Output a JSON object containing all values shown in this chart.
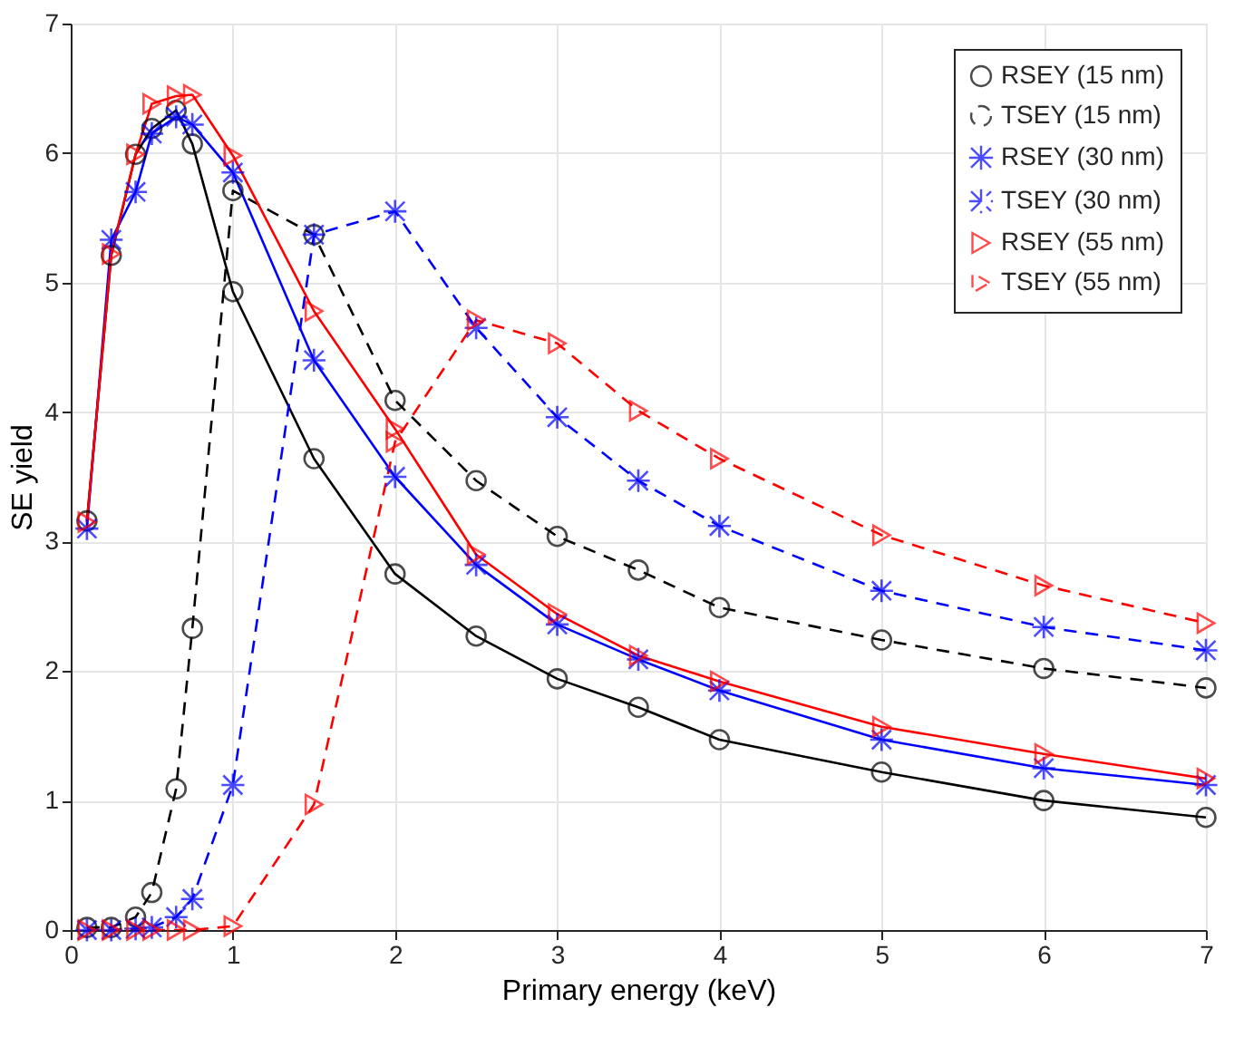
{
  "chart_data": {
    "type": "line",
    "xlabel": "Primary energy (keV)",
    "ylabel": "SE yield",
    "x": [
      0.1,
      0.25,
      0.4,
      0.5,
      0.65,
      0.75,
      1,
      1.5,
      2,
      2.5,
      3,
      3.5,
      4,
      5,
      6,
      7
    ],
    "series": [
      {
        "name": "RSEY (15 nm)",
        "color": "#000000",
        "marker": "circle",
        "line_style": "solid",
        "values": [
          3.16,
          5.21,
          5.99,
          6.19,
          6.33,
          6.07,
          4.93,
          3.64,
          2.75,
          2.27,
          1.94,
          1.72,
          1.47,
          1.22,
          1.0,
          0.87
        ]
      },
      {
        "name": "TSEY (15 nm)",
        "color": "#000000",
        "marker": "circle",
        "line_style": "dashed",
        "values": [
          0.02,
          0.02,
          0.1,
          0.29,
          1.09,
          2.33,
          5.71,
          5.37,
          4.09,
          3.47,
          3.04,
          2.78,
          2.49,
          2.24,
          2.02,
          1.87
        ]
      },
      {
        "name": "RSEY (30 nm)",
        "color": "#0000ff",
        "marker": "cross",
        "line_style": "solid",
        "values": [
          3.1,
          5.33,
          5.7,
          6.15,
          6.28,
          6.22,
          5.85,
          4.4,
          3.5,
          2.82,
          2.36,
          2.09,
          1.85,
          1.47,
          1.25,
          1.12
        ]
      },
      {
        "name": "TSEY (30 nm)",
        "color": "#0000ff",
        "marker": "cross",
        "line_style": "dashed",
        "values": [
          0.0,
          0.0,
          0.01,
          0.02,
          0.1,
          0.24,
          1.12,
          5.37,
          5.55,
          4.65,
          3.96,
          3.47,
          3.12,
          2.62,
          2.34,
          2.16
        ]
      },
      {
        "name": "RSEY (55 nm)",
        "color": "#ff0000",
        "marker": "triangle",
        "line_style": "solid",
        "values": [
          3.15,
          5.22,
          5.99,
          6.38,
          6.44,
          6.45,
          5.98,
          4.78,
          3.87,
          2.9,
          2.44,
          2.12,
          1.92,
          1.57,
          1.36,
          1.17
        ]
      },
      {
        "name": "TSEY (55 nm)",
        "color": "#ff0000",
        "marker": "triangle",
        "line_style": "dashed",
        "values": [
          0.0,
          0.0,
          0.0,
          0.0,
          0.0,
          0.0,
          0.03,
          0.97,
          3.77,
          4.71,
          4.53,
          4.01,
          3.64,
          3.05,
          2.66,
          2.37
        ]
      }
    ],
    "xlim": [
      0,
      7
    ],
    "xticks": [
      0,
      1,
      2,
      3,
      4,
      5,
      6,
      7
    ],
    "ylim": [
      0,
      7
    ],
    "yticks": [
      0,
      1,
      2,
      3,
      4,
      5,
      6,
      7
    ],
    "grid": true,
    "legend": "top right"
  }
}
